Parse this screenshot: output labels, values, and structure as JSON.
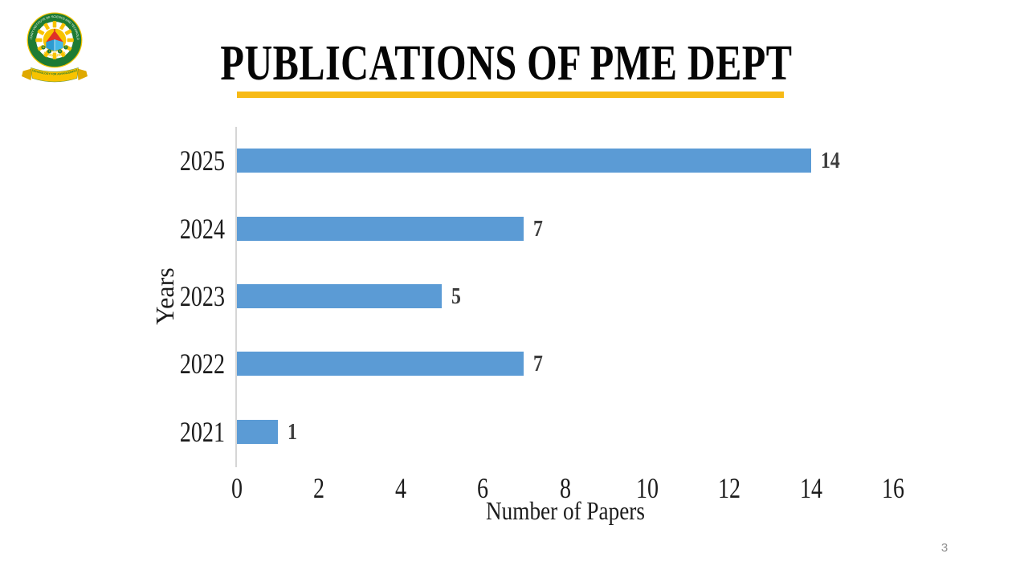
{
  "slide": {
    "title": "PUBLICATIONS OF PME DEPT",
    "page_number": "3",
    "underline_color": "#F7BA16",
    "background": "#FFFFFF"
  },
  "logo": {
    "ring_text": "MILITARY INSTITUTE OF SCIENCE AND TECHNOLOGY",
    "country": "BANGLADESH",
    "letters": [
      "M",
      "I",
      "S",
      "T"
    ],
    "motto": "TECHNOLOGY FOR ADVANCEMENT"
  },
  "chart_data": {
    "type": "bar",
    "orientation": "horizontal",
    "categories": [
      "2025",
      "2024",
      "2023",
      "2022",
      "2021"
    ],
    "values": [
      14,
      7,
      5,
      7,
      1
    ],
    "xlabel": "Number of Papers",
    "ylabel": "Years",
    "xlim": [
      0,
      16
    ],
    "xticks": [
      0,
      2,
      4,
      6,
      8,
      10,
      12,
      14,
      16
    ],
    "bar_color": "#5B9BD5",
    "grid": false,
    "legend": false,
    "data_labels_shown": true
  }
}
